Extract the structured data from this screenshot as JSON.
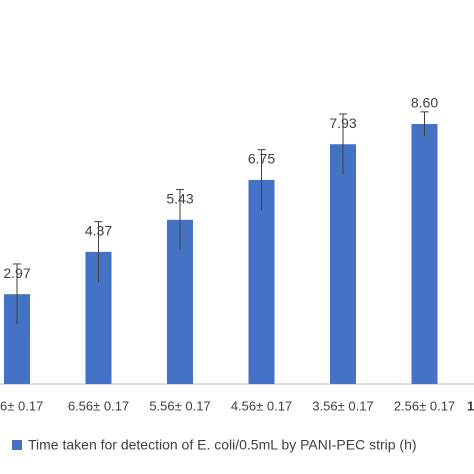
{
  "chart_data": {
    "type": "bar",
    "categories": [
      "6± 0.17",
      "6.56± 0.17",
      "5.56± 0.17",
      "4.56± 0.17",
      "3.56± 0.17",
      "2.56± 0.17",
      "1"
    ],
    "series": [
      {
        "name": "Time taken for detection of E. coli/0.5mL by PANI-PEC strip (h)",
        "color": "#4472c4",
        "values": [
          2.97,
          4.37,
          5.43,
          6.75,
          7.93,
          8.6,
          null
        ],
        "value_labels": [
          "2.97",
          "4.37",
          "5.43",
          "6.75",
          "7.93",
          "8.60",
          null
        ],
        "errors": [
          1,
          1,
          1,
          1,
          1,
          0.4,
          null
        ]
      }
    ],
    "ylim": [
      0,
      12.7
    ],
    "legend": "bottom"
  }
}
